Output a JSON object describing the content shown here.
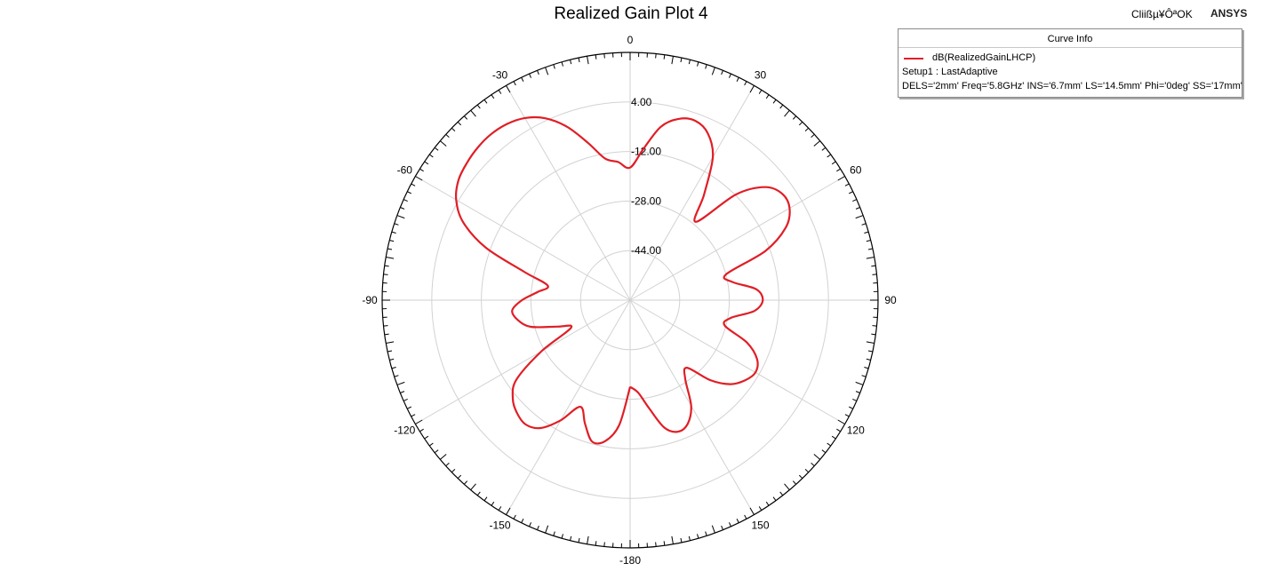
{
  "header": {
    "title": "Realized Gain Plot 4",
    "status_text": "Cliißµ¥ÔªOK",
    "brand": "ANSYS"
  },
  "legend": {
    "title": "Curve Info",
    "curve_label": "dB(RealizedGainLHCP)",
    "setup_line": "Setup1 : LastAdaptive",
    "params_line": "DELS='2mm' Freq='5.8GHz' INS='6.7mm' LS='14.5mm' Phi='0deg' SS='17mm'",
    "curve_color": "#e01e26"
  },
  "chart_data": {
    "type": "polar-line",
    "title": "Realized Gain Plot 4",
    "angle_unit": "deg",
    "radial_range": [
      -60,
      20
    ],
    "radial_ticks": [
      -44,
      -28,
      -12,
      4
    ],
    "radial_tick_labels": [
      "-44.00",
      "-28.00",
      "-12.00",
      "4.00"
    ],
    "angle_ticks": [
      0,
      30,
      60,
      90,
      120,
      150,
      180,
      -150,
      -120,
      -90,
      -60,
      -30
    ],
    "angle_tick_labels": [
      "0",
      "30",
      "60",
      "90",
      "120",
      "150",
      "-180",
      "-150",
      "-120",
      "-90",
      "-60",
      "-30"
    ],
    "grid": true,
    "legend_position": "top-right",
    "series": [
      {
        "name": "dB(RealizedGainLHCP)",
        "color": "#e01e26",
        "theta": [
          -180,
          -175,
          -170,
          -165,
          -160,
          -155,
          -150,
          -145,
          -140,
          -135,
          -130,
          -125,
          -120,
          -115,
          -110,
          -105,
          -100,
          -95,
          -90,
          -85,
          -80,
          -75,
          -70,
          -65,
          -60,
          -55,
          -50,
          -45,
          -40,
          -35,
          -30,
          -25,
          -20,
          -15,
          -10,
          -5,
          0,
          5,
          10,
          15,
          20,
          25,
          30,
          35,
          40,
          45,
          50,
          55,
          60,
          65,
          70,
          75,
          80,
          85,
          90,
          95,
          100,
          105,
          110,
          115,
          120,
          125,
          130,
          135,
          140,
          145,
          150,
          155,
          160,
          165,
          170,
          175,
          180
        ],
        "values": [
          -32,
          -19.5,
          -13.8,
          -12.7,
          -17.5,
          -22,
          -15.2,
          -9.6,
          -7.6,
          -8.4,
          -10.6,
          -15.2,
          -27,
          -39,
          -35,
          -26.8,
          -23.2,
          -21.8,
          -25.1,
          -30,
          -33,
          -24.6,
          -10.5,
          -0.6,
          4.8,
          7.6,
          8.8,
          9.6,
          9.9,
          9.4,
          7.9,
          4.8,
          -0.4,
          -7.4,
          -13.6,
          -15.2,
          -17.2,
          -11,
          -3.2,
          0.6,
          1.6,
          -0.6,
          -6.6,
          -18.4,
          -27,
          -11.8,
          -3.2,
          -0.1,
          -0.6,
          -4.6,
          -13.6,
          -28,
          -26.4,
          -19.2,
          -17.2,
          -19.8,
          -27,
          -28.4,
          -19.8,
          -14.8,
          -13.3,
          -14.8,
          -17.8,
          -23.5,
          -31.5,
          -29,
          -20.6,
          -16,
          -14.8,
          -17.4,
          -24.5,
          -30,
          -32
        ]
      }
    ]
  }
}
